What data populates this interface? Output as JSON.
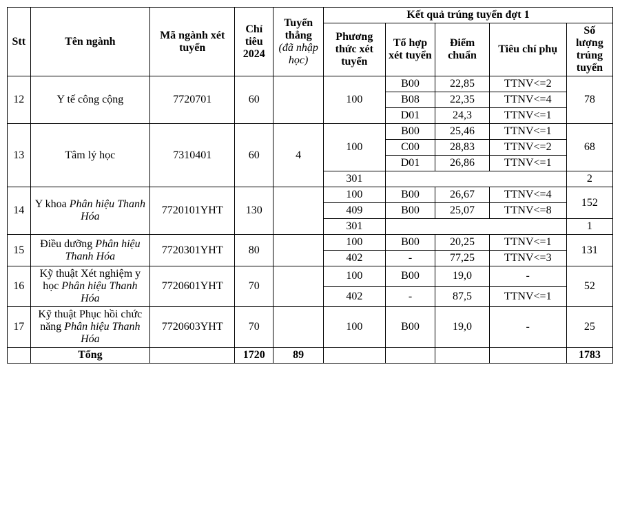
{
  "headers": {
    "stt": "Stt",
    "ten": "Tên ngành",
    "ma": "Mã ngành xét tuyển",
    "chitieu": "Chỉ tiêu 2024",
    "tuyenthang_b": "Tuyển thẳng",
    "tuyenthang_i": "(đã nhập học)",
    "ketqua": "Kết quả trúng tuyển đợt 1",
    "phuongthuc": "Phương thức xét tuyển",
    "tohop": "Tổ hợp xét tuyển",
    "diemchuan": "Điểm chuẩn",
    "tieuchiphu": "Tiêu chí phụ",
    "soluong": "Số lượng trúng tuyển"
  },
  "r12": {
    "stt": "12",
    "ten": "Y tế công cộng",
    "ma": "7720701",
    "chitieu": "60",
    "tuyen": "",
    "pt": "100",
    "l1_th": "B00",
    "l1_d": "22,85",
    "l1_tc": "TTNV<=2",
    "l2_th": "B08",
    "l2_d": "22,35",
    "l2_tc": "TTNV<=4",
    "l3_th": "D01",
    "l3_d": "24,3",
    "l3_tc": "TTNV<=1",
    "sl": "78"
  },
  "r13": {
    "stt": "13",
    "ten": "Tâm lý học",
    "ma": "7310401",
    "chitieu": "60",
    "tuyen": "4",
    "pt1": "100",
    "l1_th": "B00",
    "l1_d": "25,46",
    "l1_tc": "TTNV<=1",
    "l2_th": "C00",
    "l2_d": "28,83",
    "l2_tc": "TTNV<=2",
    "l3_th": "D01",
    "l3_d": "26,86",
    "l3_tc": "TTNV<=1",
    "sl1": "68",
    "pt2": "301",
    "sl2": "2"
  },
  "r14": {
    "stt": "14",
    "ten_plain": "Y khoa ",
    "ten_it": "Phân hiệu Thanh Hóa",
    "ma": "7720101YHT",
    "chitieu": "130",
    "tuyen": "",
    "l1_pt": "100",
    "l1_th": "B00",
    "l1_d": "26,67",
    "l1_tc": "TTNV<=4",
    "l2_pt": "409",
    "l2_th": "B00",
    "l2_d": "25,07",
    "l2_tc": "TTNV<=8",
    "sl1": "152",
    "l3_pt": "301",
    "sl2": "1"
  },
  "r15": {
    "stt": "15",
    "ten_plain": "Điều dưỡng ",
    "ten_it": "Phân hiệu Thanh Hóa",
    "ma": "7720301YHT",
    "chitieu": "80",
    "tuyen": "",
    "l1_pt": "100",
    "l1_th": "B00",
    "l1_d": "20,25",
    "l1_tc": "TTNV<=1",
    "l2_pt": "402",
    "l2_th": "-",
    "l2_d": "77,25",
    "l2_tc": "TTNV<=3",
    "sl": "131"
  },
  "r16": {
    "stt": "16",
    "ten_plain": "Kỹ thuật Xét nghiệm y học ",
    "ten_it": "Phân hiệu Thanh Hóa",
    "ma": "7720601YHT",
    "chitieu": "70",
    "tuyen": "",
    "l1_pt": "100",
    "l1_th": "B00",
    "l1_d": "19,0",
    "l1_tc": "-",
    "l2_pt": "402",
    "l2_th": "-",
    "l2_d": "87,5",
    "l2_tc": "TTNV<=1",
    "sl": "52"
  },
  "r17": {
    "stt": "17",
    "ten_plain": "Kỹ thuật Phục hồi chức năng ",
    "ten_it": "Phân hiệu Thanh Hóa",
    "ma": "7720603YHT",
    "chitieu": "70",
    "tuyen": "",
    "pt": "100",
    "th": "B00",
    "d": "19,0",
    "tc": "-",
    "sl": "25"
  },
  "total": {
    "label": "Tổng",
    "chitieu": "1720",
    "tuyen": "89",
    "sl": "1783"
  }
}
